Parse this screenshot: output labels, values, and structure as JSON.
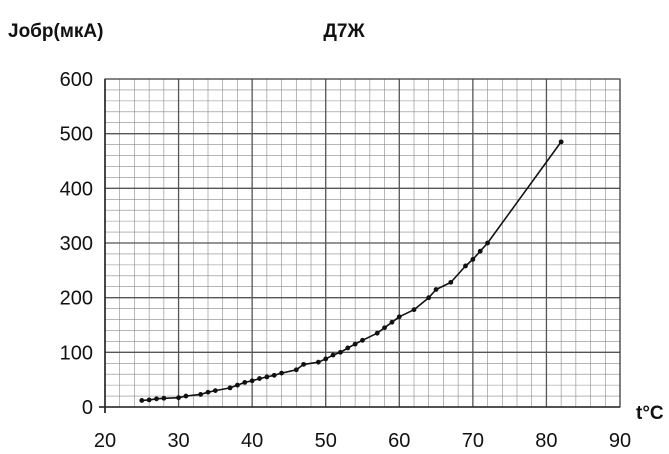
{
  "chart_data": {
    "type": "line",
    "title": "Д7Ж",
    "ylabel": "Jобр(мкА)",
    "xlabel": "t°C",
    "xlim": [
      20,
      90
    ],
    "ylim": [
      0,
      600
    ],
    "xticks": [
      "20",
      "30",
      "40",
      "50",
      "60",
      "70",
      "80",
      "90"
    ],
    "yticks": [
      "0",
      "100",
      "200",
      "300",
      "400",
      "500",
      "600"
    ],
    "grid": true,
    "colors": {
      "line": "#111111",
      "grid": "#555555",
      "marker": "#111111"
    },
    "series": [
      {
        "x": [
          25,
          26,
          27,
          28,
          30,
          31,
          33,
          34,
          35,
          37,
          38,
          39,
          40,
          41,
          42,
          43,
          44,
          46,
          47,
          49,
          50,
          51,
          52,
          53,
          54,
          55,
          57,
          58,
          59,
          60,
          62,
          64,
          65,
          67,
          69,
          70,
          71,
          72,
          82
        ],
        "y": [
          12,
          13,
          15,
          16,
          17,
          20,
          23,
          27,
          30,
          35,
          40,
          45,
          48,
          52,
          55,
          58,
          62,
          68,
          78,
          82,
          88,
          95,
          100,
          108,
          115,
          122,
          135,
          145,
          155,
          165,
          178,
          200,
          215,
          228,
          258,
          270,
          285,
          300,
          485
        ]
      }
    ]
  }
}
